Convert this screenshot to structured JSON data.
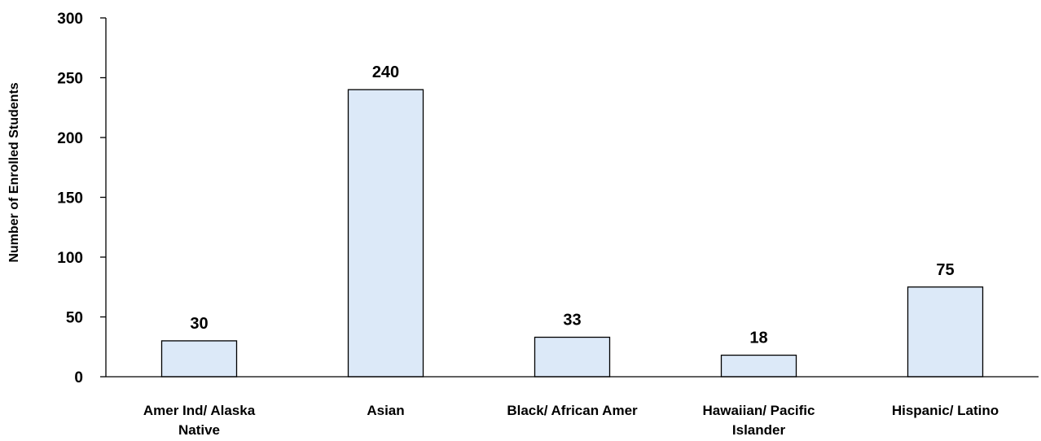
{
  "chart_data": {
    "type": "bar",
    "categories": [
      "Amer Ind/ Alaska Native",
      "Asian",
      "Black/ African Amer",
      "Hawaiian/ Pacific Islander",
      "Hispanic/ Latino"
    ],
    "category_lines": [
      [
        "Amer Ind/ Alaska",
        "Native"
      ],
      [
        "Asian"
      ],
      [
        "Black/ African Amer"
      ],
      [
        "Hawaiian/ Pacific",
        "Islander"
      ],
      [
        "Hispanic/ Latino"
      ]
    ],
    "values": [
      30,
      240,
      33,
      18,
      75
    ],
    "data_labels": [
      "30",
      "240",
      "33",
      "18",
      "75"
    ],
    "ylabel": "Number of Enrolled Students",
    "xlabel": "",
    "ylim": [
      0,
      300
    ],
    "yticks": [
      0,
      50,
      100,
      150,
      200,
      250,
      300
    ],
    "ytick_labels": [
      "0",
      "50",
      "100",
      "150",
      "200",
      "250",
      "300"
    ],
    "grid": false,
    "legend": "none",
    "colors": {
      "bar_fill": "#DCE9F8",
      "bar_stroke": "#000000",
      "axis": "#000000"
    }
  }
}
